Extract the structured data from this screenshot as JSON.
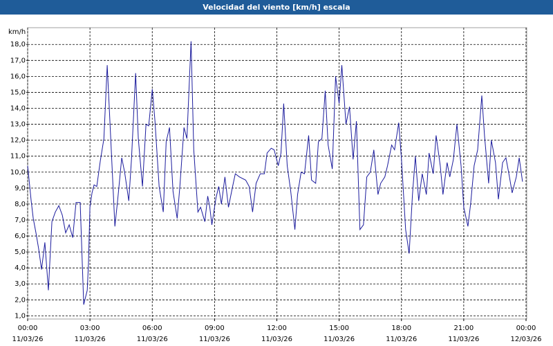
{
  "chart_data": {
    "type": "line",
    "title": "Velocidad del viento [km/h] escala",
    "y_label": "km/h",
    "x": [
      0,
      0.07,
      0.17,
      0.27,
      0.4,
      0.53,
      0.67,
      0.83,
      1.0,
      1.17,
      1.33,
      1.5,
      1.67,
      1.83,
      2.0,
      2.17,
      2.33,
      2.53,
      2.7,
      2.87,
      2.93,
      3.0,
      3.1,
      3.2,
      3.33,
      3.5,
      3.67,
      3.83,
      4.0,
      4.2,
      4.33,
      4.53,
      4.67,
      4.87,
      5.0,
      5.2,
      5.33,
      5.53,
      5.7,
      5.83,
      6.0,
      6.13,
      6.33,
      6.53,
      6.67,
      6.83,
      7.0,
      7.2,
      7.33,
      7.53,
      7.67,
      7.87,
      8.0,
      8.2,
      8.33,
      8.53,
      8.67,
      8.77,
      8.87,
      9.07,
      9.2,
      9.33,
      9.5,
      9.67,
      9.87,
      10.0,
      10.2,
      10.5,
      10.67,
      10.83,
      11.0,
      11.2,
      11.4,
      11.53,
      11.73,
      11.87,
      12.07,
      12.2,
      12.33,
      12.5,
      12.67,
      12.87,
      13.0,
      13.17,
      13.33,
      13.53,
      13.67,
      13.87,
      14.0,
      14.17,
      14.33,
      14.47,
      14.67,
      14.83,
      15.0,
      15.13,
      15.33,
      15.5,
      15.67,
      15.83,
      16.0,
      16.17,
      16.33,
      16.5,
      16.67,
      16.87,
      17.0,
      17.2,
      17.33,
      17.53,
      17.67,
      17.87,
      18.0,
      18.2,
      18.37,
      18.53,
      18.67,
      18.83,
      19.0,
      19.2,
      19.33,
      19.53,
      19.67,
      19.87,
      20.0,
      20.2,
      20.33,
      20.5,
      20.67,
      20.87,
      21.0,
      21.2,
      21.33,
      21.5,
      21.67,
      21.87,
      22.0,
      22.2,
      22.33,
      22.53,
      22.67,
      22.87,
      23.03,
      23.2,
      23.33,
      23.53,
      23.67,
      23.83
    ],
    "series": [
      {
        "name": "Velocidad del viento",
        "color": "#1a1a9c",
        "values": [
          10.4,
          9.5,
          8.2,
          7.1,
          6.2,
          5.2,
          3.9,
          5.6,
          2.6,
          6.9,
          7.5,
          7.9,
          7.3,
          6.2,
          6.7,
          5.9,
          8.1,
          8.1,
          1.7,
          2.6,
          4.3,
          7.8,
          8.7,
          9.2,
          9.1,
          10.7,
          12.1,
          16.7,
          12.1,
          6.6,
          8.2,
          10.9,
          10.0,
          8.2,
          10.8,
          16.2,
          12.1,
          9.1,
          13.0,
          12.9,
          15.2,
          13.2,
          9.1,
          7.5,
          11.9,
          12.8,
          8.8,
          7.1,
          9.1,
          12.8,
          12.1,
          18.2,
          11.4,
          7.5,
          7.8,
          6.9,
          8.5,
          7.8,
          6.7,
          8.4,
          9.1,
          8.0,
          9.7,
          7.8,
          9.1,
          9.9,
          9.7,
          9.5,
          9.1,
          7.5,
          9.3,
          9.9,
          9.9,
          11.2,
          11.5,
          11.4,
          10.4,
          11.2,
          14.3,
          10.4,
          8.8,
          6.4,
          8.6,
          10.0,
          9.9,
          12.3,
          9.5,
          9.3,
          11.9,
          12.1,
          15.1,
          11.7,
          10.2,
          16.0,
          14.3,
          16.7,
          13.0,
          14.1,
          10.8,
          13.2,
          6.4,
          6.7,
          9.7,
          10.0,
          11.4,
          8.6,
          9.3,
          9.7,
          10.4,
          11.7,
          11.4,
          13.1,
          10.8,
          6.4,
          4.9,
          8.6,
          11.0,
          8.2,
          9.9,
          8.6,
          11.2,
          9.9,
          12.3,
          10.4,
          8.6,
          10.6,
          9.7,
          10.8,
          13.0,
          10.4,
          7.8,
          6.6,
          8.0,
          10.4,
          11.4,
          14.8,
          12.3,
          9.3,
          12.0,
          10.6,
          8.3,
          10.6,
          10.9,
          9.7,
          8.7,
          9.7,
          10.9,
          9.4
        ]
      }
    ],
    "xlim": [
      0,
      24
    ],
    "xticks": [
      {
        "value": 0,
        "label": "00:00\n11/03/26"
      },
      {
        "value": 3,
        "label": "03:00\n11/03/26"
      },
      {
        "value": 6,
        "label": "06:00\n11/03/26"
      },
      {
        "value": 9,
        "label": "09:00\n11/03/26"
      },
      {
        "value": 12,
        "label": "12:00\n11/03/26"
      },
      {
        "value": 15,
        "label": "15:00\n11/03/26"
      },
      {
        "value": 18,
        "label": "18:00\n11/03/26"
      },
      {
        "value": 21,
        "label": "21:00\n11/03/26"
      },
      {
        "value": 24,
        "label": "00:00\n12/03/26"
      }
    ],
    "ylim": [
      0.8,
      19.05
    ],
    "yticks": [
      {
        "value": 1,
        "label": "1,0"
      },
      {
        "value": 2,
        "label": "2,0"
      },
      {
        "value": 3,
        "label": "3,0"
      },
      {
        "value": 4,
        "label": "4,0"
      },
      {
        "value": 5,
        "label": "5,0"
      },
      {
        "value": 6,
        "label": "6,0"
      },
      {
        "value": 7,
        "label": "7,0"
      },
      {
        "value": 8,
        "label": "8,0"
      },
      {
        "value": 9,
        "label": "9,0"
      },
      {
        "value": 10,
        "label": "10,0"
      },
      {
        "value": 11,
        "label": "11,0"
      },
      {
        "value": 12,
        "label": "12,0"
      },
      {
        "value": 13,
        "label": "13,0"
      },
      {
        "value": 14,
        "label": "14,0"
      },
      {
        "value": 15,
        "label": "15,0"
      },
      {
        "value": 16,
        "label": "16,0"
      },
      {
        "value": 17,
        "label": "17,0"
      },
      {
        "value": 18,
        "label": "18,0"
      }
    ],
    "grid": true
  }
}
